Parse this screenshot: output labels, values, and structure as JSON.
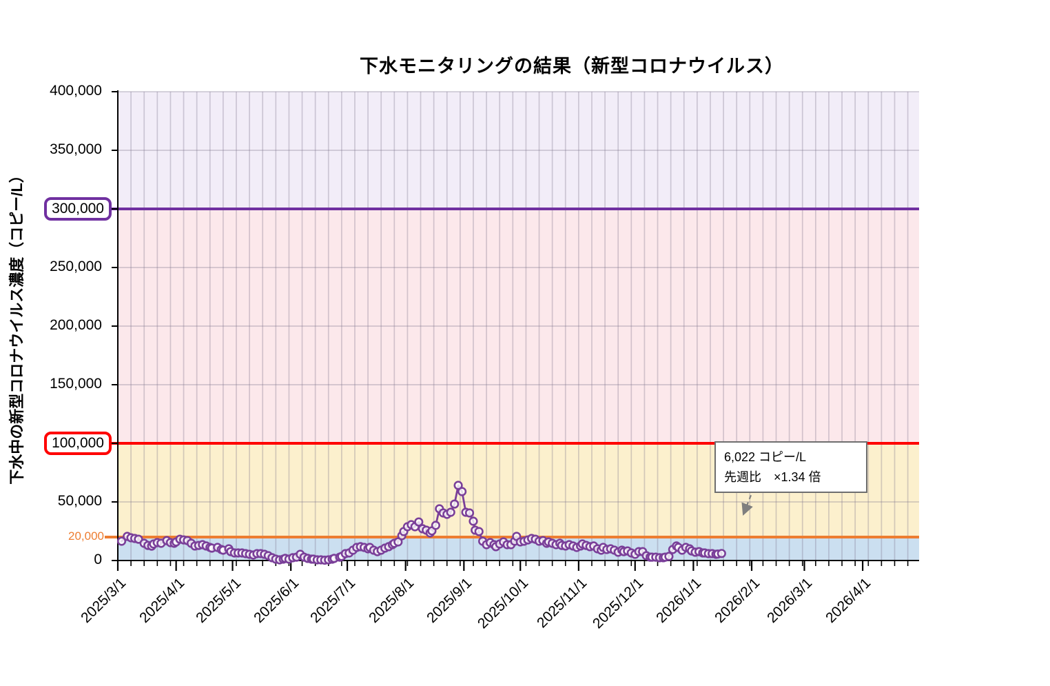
{
  "title": "下水モニタリングの結果（新型コロナウイルス）",
  "y_axis": {
    "title": "下水中の新型コロナウイルス濃度（コピー/L）",
    "tick_labels": [
      {
        "label": "400,000",
        "value": 400000
      },
      {
        "label": "350,000",
        "value": 350000
      },
      {
        "label": "250,000",
        "value": 250000
      },
      {
        "label": "200,000",
        "value": 200000
      },
      {
        "label": "150,000",
        "value": 150000
      },
      {
        "label": "50,000",
        "value": 50000
      },
      {
        "label": "0",
        "value": 0
      }
    ]
  },
  "x_axis": {
    "tick_labels": [
      {
        "label": "2025/3/1",
        "day": 0
      },
      {
        "label": "2025/4/1",
        "day": 31
      },
      {
        "label": "2025/5/1",
        "day": 61
      },
      {
        "label": "2025/6/1",
        "day": 92
      },
      {
        "label": "2025/7/1",
        "day": 122
      },
      {
        "label": "2025/8/1",
        "day": 153
      },
      {
        "label": "2025/9/1",
        "day": 184
      },
      {
        "label": "2025/10/1",
        "day": 214
      },
      {
        "label": "2025/11/1",
        "day": 245
      },
      {
        "label": "2025/12/1",
        "day": 275
      },
      {
        "label": "2026/1/1",
        "day": 306
      },
      {
        "label": "2026/2/1",
        "day": 337
      },
      {
        "label": "2026/3/1",
        "day": 365
      },
      {
        "label": "2026/4/1",
        "day": 396
      }
    ]
  },
  "thresholds": [
    {
      "label": "300,000",
      "value": 300000,
      "color": "#7030A0",
      "style": "boxed"
    },
    {
      "label": "100,000",
      "value": 100000,
      "color": "#FF0000",
      "style": "boxed"
    },
    {
      "label": "20,000",
      "value": 20000,
      "color": "#ED7D31",
      "style": "plain"
    }
  ],
  "bands": [
    {
      "from": 300000,
      "to": 400000,
      "color": "#F2EDF8"
    },
    {
      "from": 100000,
      "to": 300000,
      "color": "#FCE8EB"
    },
    {
      "from": 20000,
      "to": 100000,
      "color": "#FCF0CD"
    },
    {
      "from": 0,
      "to": 20000,
      "color": "#CBDFF0"
    }
  ],
  "annotation": {
    "line1": "6,022 コピー/L",
    "line2": "先週比　×1.34 倍"
  },
  "series_color": "#7A3F99",
  "chart_data": {
    "type": "line",
    "title": "下水モニタリングの結果（新型コロナウイルス）",
    "xlabel": "",
    "ylabel": "下水中の新型コロナウイルス濃度（コピー/L）",
    "ylim": [
      0,
      400000
    ],
    "x_range": [
      "2025/3/1",
      "2026/5/1"
    ],
    "x_unit": "days since 2025/3/1",
    "grid": "weekly vertical, 50k horizontal",
    "legend": "none",
    "latest_value": 6022,
    "week_over_week_ratio": 1.34,
    "points": [
      [
        2,
        16500
      ],
      [
        5,
        20600
      ],
      [
        7,
        19400
      ],
      [
        9,
        18800
      ],
      [
        11,
        18200
      ],
      [
        14,
        14700
      ],
      [
        16,
        12900
      ],
      [
        18,
        12300
      ],
      [
        19,
        14100
      ],
      [
        21,
        15300
      ],
      [
        23,
        14700
      ],
      [
        26,
        17000
      ],
      [
        28,
        15300
      ],
      [
        30,
        14700
      ],
      [
        31,
        15900
      ],
      [
        33,
        18200
      ],
      [
        35,
        17600
      ],
      [
        37,
        17000
      ],
      [
        39,
        14700
      ],
      [
        41,
        12400
      ],
      [
        43,
        12900
      ],
      [
        45,
        13500
      ],
      [
        47,
        12400
      ],
      [
        49,
        11200
      ],
      [
        50,
        10600
      ],
      [
        53,
        11200
      ],
      [
        55,
        9400
      ],
      [
        56,
        8800
      ],
      [
        59,
        10000
      ],
      [
        60,
        7600
      ],
      [
        62,
        6500
      ],
      [
        64,
        6500
      ],
      [
        66,
        6500
      ],
      [
        68,
        5900
      ],
      [
        70,
        5300
      ],
      [
        72,
        4700
      ],
      [
        74,
        5900
      ],
      [
        76,
        5900
      ],
      [
        78,
        5300
      ],
      [
        80,
        4100
      ],
      [
        82,
        2400
      ],
      [
        84,
        1200
      ],
      [
        86,
        600
      ],
      [
        88,
        1200
      ],
      [
        89,
        1800
      ],
      [
        91,
        1200
      ],
      [
        93,
        2400
      ],
      [
        95,
        2900
      ],
      [
        97,
        5300
      ],
      [
        99,
        2900
      ],
      [
        101,
        1800
      ],
      [
        103,
        1200
      ],
      [
        104,
        1200
      ],
      [
        106,
        600
      ],
      [
        108,
        600
      ],
      [
        110,
        300
      ],
      [
        112,
        600
      ],
      [
        114,
        1200
      ],
      [
        115,
        1800
      ],
      [
        118,
        2900
      ],
      [
        119,
        3500
      ],
      [
        121,
        5900
      ],
      [
        123,
        6500
      ],
      [
        125,
        8800
      ],
      [
        127,
        11200
      ],
      [
        129,
        11800
      ],
      [
        131,
        11200
      ],
      [
        133,
        10000
      ],
      [
        134,
        11200
      ],
      [
        136,
        8800
      ],
      [
        138,
        7600
      ],
      [
        140,
        8800
      ],
      [
        142,
        10600
      ],
      [
        144,
        11800
      ],
      [
        146,
        13500
      ],
      [
        147,
        14700
      ],
      [
        149,
        15900
      ],
      [
        151,
        21200
      ],
      [
        152,
        24700
      ],
      [
        154,
        28800
      ],
      [
        156,
        30600
      ],
      [
        158,
        28800
      ],
      [
        160,
        32900
      ],
      [
        162,
        27100
      ],
      [
        164,
        25900
      ],
      [
        166,
        23500
      ],
      [
        167,
        25300
      ],
      [
        169,
        30000
      ],
      [
        171,
        44100
      ],
      [
        173,
        40600
      ],
      [
        175,
        39400
      ],
      [
        177,
        41200
      ],
      [
        179,
        48200
      ],
      [
        181,
        64100
      ],
      [
        183,
        58800
      ],
      [
        185,
        41200
      ],
      [
        187,
        40600
      ],
      [
        189,
        33500
      ],
      [
        190,
        25900
      ],
      [
        192,
        24700
      ],
      [
        194,
        16500
      ],
      [
        196,
        13500
      ],
      [
        198,
        15300
      ],
      [
        200,
        13500
      ],
      [
        201,
        11800
      ],
      [
        203,
        14100
      ],
      [
        205,
        15900
      ],
      [
        207,
        13500
      ],
      [
        209,
        13500
      ],
      [
        211,
        16500
      ],
      [
        212,
        20600
      ],
      [
        214,
        15900
      ],
      [
        216,
        16500
      ],
      [
        218,
        17600
      ],
      [
        220,
        18800
      ],
      [
        222,
        18200
      ],
      [
        224,
        16500
      ],
      [
        226,
        17000
      ],
      [
        228,
        14700
      ],
      [
        229,
        15900
      ],
      [
        231,
        14700
      ],
      [
        233,
        13500
      ],
      [
        235,
        14700
      ],
      [
        236,
        12900
      ],
      [
        238,
        12400
      ],
      [
        240,
        13500
      ],
      [
        242,
        12400
      ],
      [
        244,
        11200
      ],
      [
        246,
        12400
      ],
      [
        247,
        14100
      ],
      [
        249,
        12900
      ],
      [
        251,
        11800
      ],
      [
        253,
        12400
      ],
      [
        255,
        10000
      ],
      [
        257,
        8800
      ],
      [
        258,
        11200
      ],
      [
        260,
        9400
      ],
      [
        262,
        10000
      ],
      [
        264,
        8800
      ],
      [
        266,
        7100
      ],
      [
        268,
        8800
      ],
      [
        269,
        7600
      ],
      [
        271,
        8200
      ],
      [
        273,
        6500
      ],
      [
        275,
        5300
      ],
      [
        277,
        7600
      ],
      [
        279,
        7600
      ],
      [
        281,
        4100
      ],
      [
        283,
        2900
      ],
      [
        284,
        2900
      ],
      [
        286,
        2900
      ],
      [
        288,
        2400
      ],
      [
        290,
        2400
      ],
      [
        291,
        2900
      ],
      [
        293,
        3500
      ],
      [
        295,
        9400
      ],
      [
        297,
        12400
      ],
      [
        298,
        11200
      ],
      [
        300,
        8800
      ],
      [
        302,
        11200
      ],
      [
        304,
        10000
      ],
      [
        305,
        8200
      ],
      [
        307,
        7100
      ],
      [
        309,
        7600
      ],
      [
        311,
        6500
      ],
      [
        312,
        6500
      ],
      [
        314,
        5900
      ],
      [
        316,
        5900
      ],
      [
        318,
        5300
      ],
      [
        319,
        5500
      ],
      [
        321,
        6022
      ]
    ]
  }
}
